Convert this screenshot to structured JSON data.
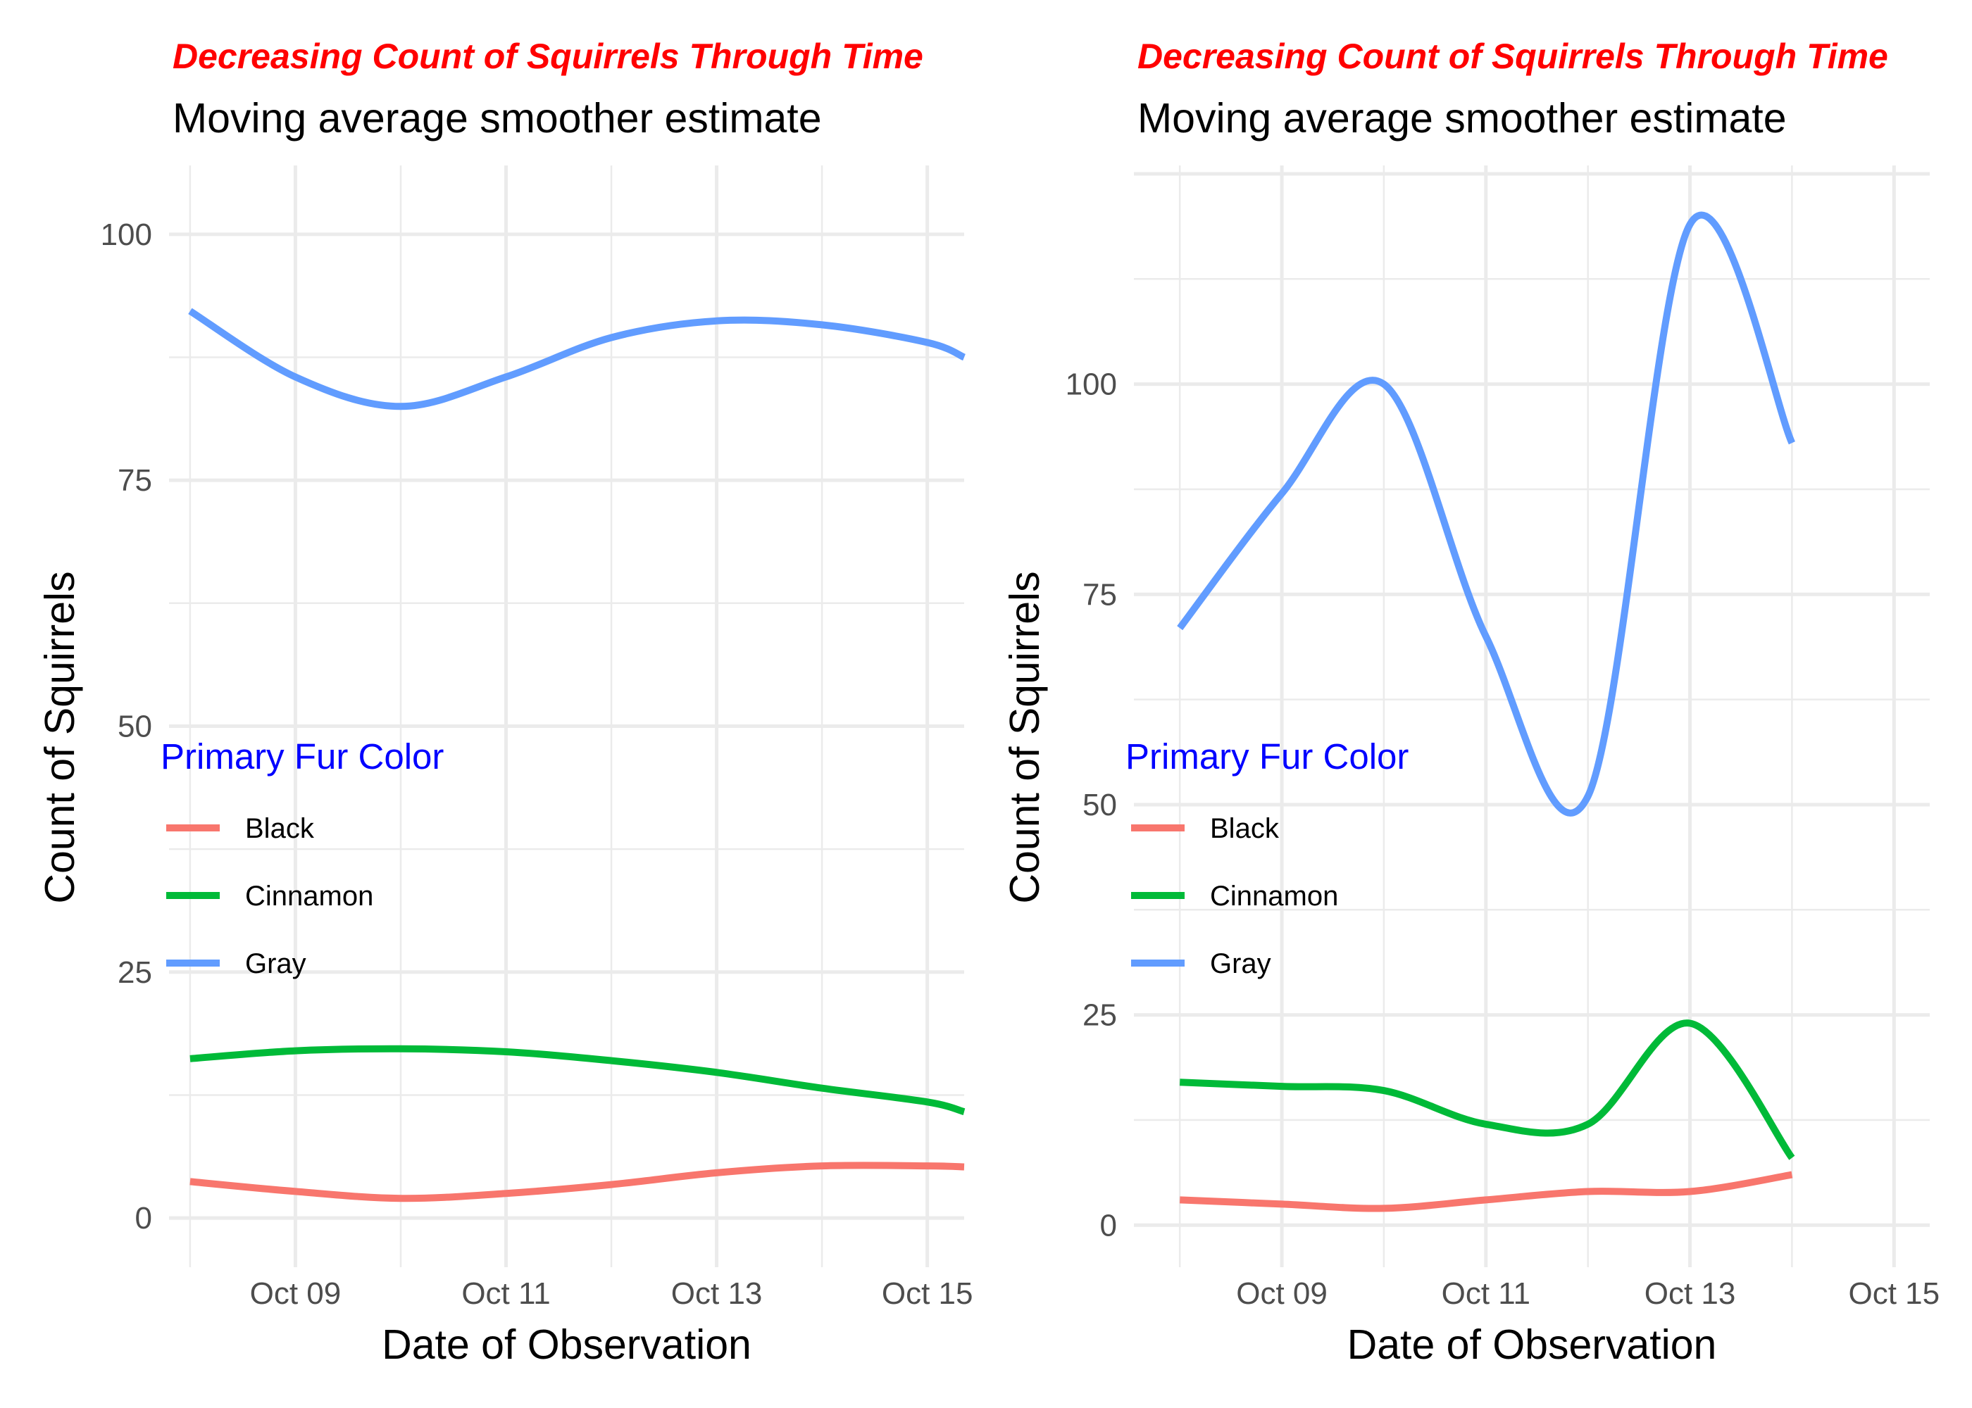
{
  "colors": {
    "title": "#ff0000",
    "legend_title": "#0000ff",
    "Black": "#f8766d",
    "Cinnamon": "#00ba38",
    "Gray": "#619cff",
    "grid": "#ebebeb"
  },
  "chart_data": [
    {
      "type": "line",
      "title": "Decreasing Count of Squirrels Through Time",
      "subtitle": "Moving average smoother estimate",
      "xlabel": "Date of Observation",
      "ylabel": "Count of Squirrels",
      "x_ticks": [
        "Oct 09",
        "Oct 11",
        "Oct 13",
        "Oct 15"
      ],
      "y_ticks": [
        "0",
        "25",
        "50",
        "75",
        "100"
      ],
      "ylim": [
        -5,
        107
      ],
      "legend_title": "Primary Fur Color",
      "legend_position": "left, inside plot",
      "grid": true,
      "series": [
        {
          "name": "Black",
          "x": [
            "Oct 08",
            "Oct 09",
            "Oct 10",
            "Oct 11",
            "Oct 12",
            "Oct 13",
            "Oct 14",
            "Oct 15",
            "Oct 16"
          ],
          "values": [
            3.7,
            2.7,
            2.0,
            2.5,
            3.4,
            4.6,
            5.3,
            5.3,
            5.2
          ]
        },
        {
          "name": "Cinnamon",
          "x": [
            "Oct 08",
            "Oct 09",
            "Oct 10",
            "Oct 11",
            "Oct 12",
            "Oct 13",
            "Oct 14",
            "Oct 15",
            "Oct 16"
          ],
          "values": [
            16.2,
            17.0,
            17.2,
            16.9,
            16.0,
            14.8,
            13.2,
            11.8,
            10.8
          ]
        },
        {
          "name": "Gray",
          "x": [
            "Oct 08",
            "Oct 09",
            "Oct 10",
            "Oct 11",
            "Oct 12",
            "Oct 13",
            "Oct 14",
            "Oct 15",
            "Oct 16"
          ],
          "values": [
            92.2,
            85.5,
            82.5,
            85.5,
            89.5,
            91.2,
            90.8,
            89.0,
            87.5
          ]
        }
      ]
    },
    {
      "type": "line",
      "title": "Decreasing Count of Squirrels Through Time",
      "subtitle": "Moving average smoother estimate",
      "xlabel": "Date of Observation",
      "ylabel": "Count of Squirrels",
      "x_ticks": [
        "Oct 09",
        "Oct 11",
        "Oct 13",
        "Oct 15"
      ],
      "y_ticks": [
        "0",
        "25",
        "50",
        "75",
        "100"
      ],
      "ylim": [
        -5,
        126
      ],
      "legend_title": "Primary Fur Color",
      "legend_position": "left, inside plot",
      "grid": true,
      "series": [
        {
          "name": "Black",
          "x": [
            "Oct 08",
            "Oct 09",
            "Oct 10",
            "Oct 11",
            "Oct 12",
            "Oct 13",
            "Oct 14"
          ],
          "values": [
            3,
            2.5,
            2,
            3,
            4,
            4,
            6
          ]
        },
        {
          "name": "Cinnamon",
          "x": [
            "Oct 08",
            "Oct 09",
            "Oct 10",
            "Oct 11",
            "Oct 12",
            "Oct 13",
            "Oct 14"
          ],
          "values": [
            17,
            16.5,
            16,
            12,
            12,
            24,
            8
          ]
        },
        {
          "name": "Gray",
          "x": [
            "Oct 08",
            "Oct 09",
            "Oct 10",
            "Oct 11",
            "Oct 12",
            "Oct 13",
            "Oct 14"
          ],
          "values": [
            71,
            87,
            100,
            70,
            51,
            119,
            93
          ]
        }
      ]
    }
  ]
}
